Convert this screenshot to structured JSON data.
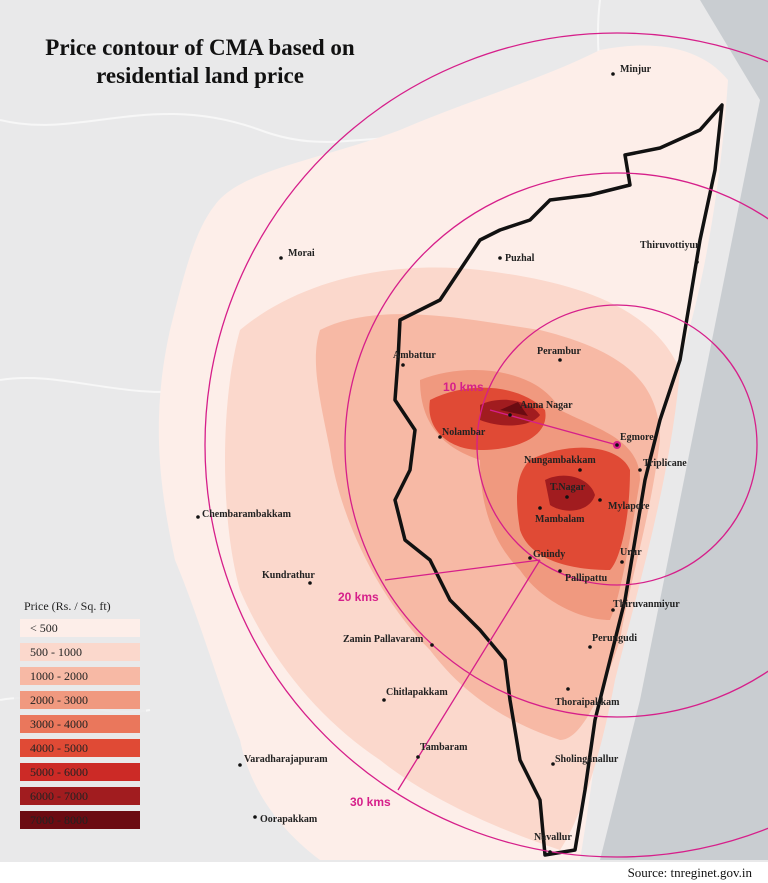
{
  "title": [
    "Price contour of CMA based on",
    "residential land price"
  ],
  "places": [
    "Minjur",
    "Thiruvottiyur",
    "Morai",
    "Puzhal",
    "Perambur",
    "Ambattur",
    "Anna Nagar",
    "Nolambar",
    "Egmore",
    "Nungambakkam",
    "Triplicane",
    "T.Nagar",
    "Mylapore",
    "Mambalam",
    "Chembarambakkam",
    "Guindy",
    "Urur",
    "Kundrathur",
    "Pallipattu",
    "Thiruvanmiyur",
    "Zamin Pallavaram",
    "Perungudi",
    "Chitlapakkam",
    "Thoraipakkam",
    "Tambaram",
    "Varadharajapuram",
    "Sholinganallur",
    "Oorapakkam",
    "Navallur"
  ],
  "rings": [
    "10 kms",
    "20 kms",
    "30 kms"
  ],
  "legend": {
    "title": "Price (Rs. / Sq. ft)",
    "items": [
      {
        "label": "< 500",
        "color": "#fdeee9"
      },
      {
        "label": "500 - 1000",
        "color": "#fbd8cc"
      },
      {
        "label": "1000 - 2000",
        "color": "#f7b9a5"
      },
      {
        "label": "2000 - 3000",
        "color": "#f0997f"
      },
      {
        "label": "3000 - 4000",
        "color": "#ea775c"
      },
      {
        "label": "4000 - 5000",
        "color": "#e04a35"
      },
      {
        "label": "5000 - 6000",
        "color": "#cc2a26"
      },
      {
        "label": "6000 - 7000",
        "color": "#a11c1f"
      },
      {
        "label": "7000 - 8000",
        "color": "#6b0b12"
      }
    ]
  },
  "source": "Source: tnreginet.gov.in"
}
